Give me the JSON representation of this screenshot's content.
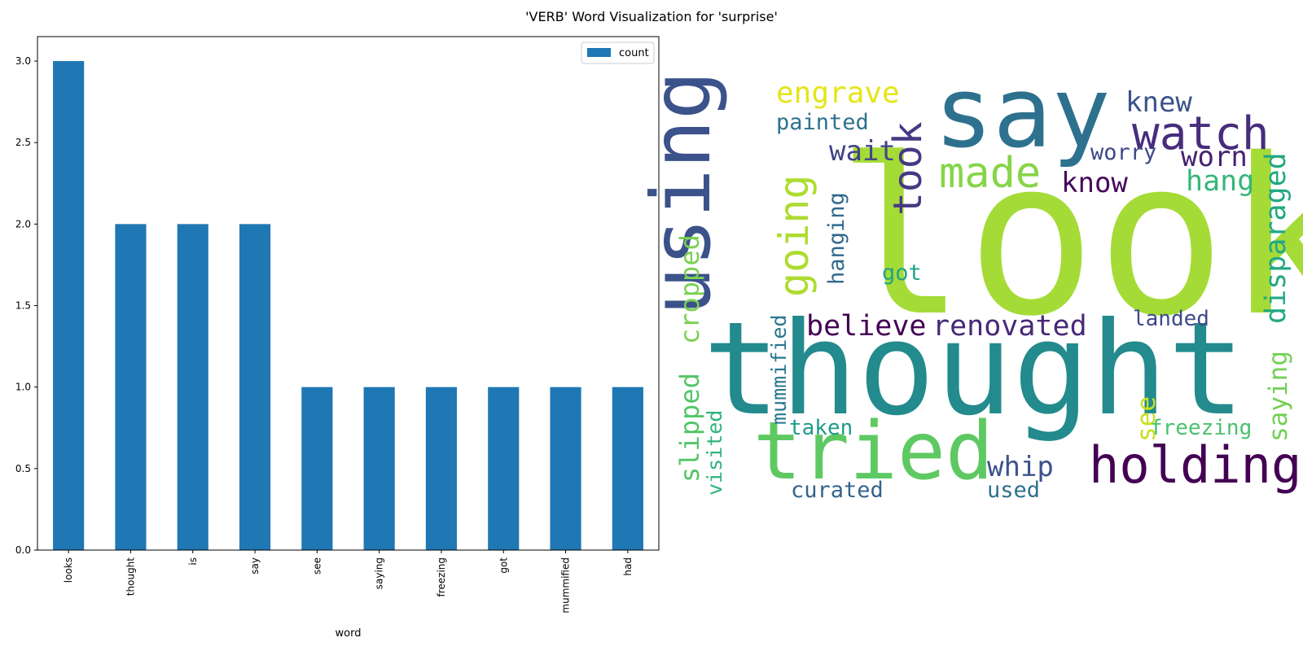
{
  "figure_title": "'VERB' Word Visualization for 'surprise'",
  "chart_data": [
    {
      "type": "bar",
      "categories": [
        "looks",
        "thought",
        "is",
        "say",
        "see",
        "saying",
        "freezing",
        "got",
        "mummified",
        "had"
      ],
      "series": [
        {
          "name": "count",
          "values": [
            3,
            2,
            2,
            2,
            1,
            1,
            1,
            1,
            1,
            1
          ]
        }
      ],
      "xlabel": "word",
      "ylabel": "",
      "ylim": [
        0,
        3.15
      ],
      "yticks": [
        "0.0",
        "0.5",
        "1.0",
        "1.5",
        "2.0",
        "2.5",
        "3.0"
      ],
      "legend": {
        "placement": "top-right",
        "entries": [
          "count"
        ]
      },
      "bar_color": "#1f77b4",
      "grid": false
    },
    {
      "type": "wordcloud",
      "words": [
        {
          "text": "look",
          "color": "#a5db36"
        },
        {
          "text": "thought",
          "color": "#238a8d"
        },
        {
          "text": "say",
          "color": "#2d718e"
        },
        {
          "text": "using",
          "color": "#3b528b"
        },
        {
          "text": "tried",
          "color": "#5ec962"
        },
        {
          "text": "holding",
          "color": "#440154"
        },
        {
          "text": "watch",
          "color": "#472d7b"
        },
        {
          "text": "made",
          "color": "#86d549"
        },
        {
          "text": "going",
          "color": "#addc30"
        },
        {
          "text": "took",
          "color": "#443983"
        },
        {
          "text": "engrave",
          "color": "#e5e419"
        },
        {
          "text": "painted",
          "color": "#2c728e"
        },
        {
          "text": "knew",
          "color": "#3b528b"
        },
        {
          "text": "wait",
          "color": "#414487"
        },
        {
          "text": "worry",
          "color": "#3e4989"
        },
        {
          "text": "worn",
          "color": "#482173"
        },
        {
          "text": "know",
          "color": "#46085c"
        },
        {
          "text": "hang",
          "color": "#35b779"
        },
        {
          "text": "disparaged",
          "color": "#22a884"
        },
        {
          "text": "hanging",
          "color": "#31688e"
        },
        {
          "text": "got",
          "color": "#20a386"
        },
        {
          "text": "slipped",
          "color": "#54c568"
        },
        {
          "text": "cropped",
          "color": "#7ad151"
        },
        {
          "text": "believe",
          "color": "#440154"
        },
        {
          "text": "renovated",
          "color": "#482878"
        },
        {
          "text": "landed",
          "color": "#3e4989"
        },
        {
          "text": "mummified",
          "color": "#2a788e"
        },
        {
          "text": "saying",
          "color": "#73d056"
        },
        {
          "text": "see",
          "color": "#c8e020"
        },
        {
          "text": "freezing",
          "color": "#4ac16d"
        },
        {
          "text": "taken",
          "color": "#1f9a8a"
        },
        {
          "text": "visited",
          "color": "#2fb47c"
        },
        {
          "text": "whip",
          "color": "#3b528b"
        },
        {
          "text": "curated",
          "color": "#33638d"
        },
        {
          "text": "used",
          "color": "#2d708e"
        }
      ]
    }
  ]
}
